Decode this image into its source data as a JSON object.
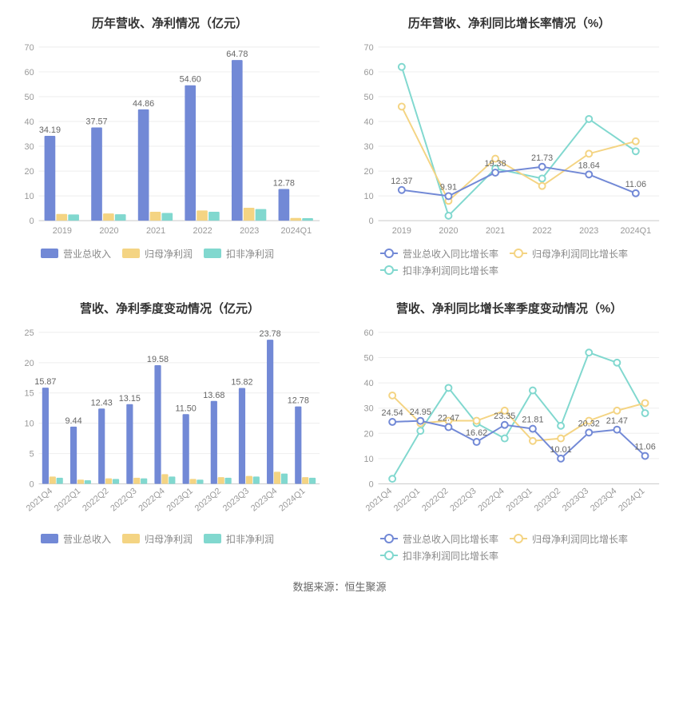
{
  "colors": {
    "series_blue": "#7289d6",
    "series_yellow": "#f4d483",
    "series_teal": "#81d8cf",
    "axis_text": "#999999",
    "grid": "#eeeeee",
    "axis_line": "#cccccc",
    "label_text": "#666666",
    "title_text": "#333333",
    "bg": "#ffffff"
  },
  "chart_tl": {
    "title": "历年营收、净利情况（亿元）",
    "type": "bar",
    "categories": [
      "2019",
      "2020",
      "2021",
      "2022",
      "2023",
      "2024Q1"
    ],
    "ylim": [
      0,
      70
    ],
    "ytick_step": 10,
    "series": [
      {
        "name": "营业总收入",
        "color": "#7289d6",
        "values": [
          34.19,
          37.57,
          44.86,
          54.6,
          64.78,
          12.78
        ],
        "labels": [
          "34.19",
          "37.57",
          "44.86",
          "54.60",
          "64.78",
          "12.78"
        ]
      },
      {
        "name": "归母净利润",
        "color": "#f4d483",
        "values": [
          2.7,
          2.9,
          3.6,
          4.1,
          5.2,
          1.1
        ]
      },
      {
        "name": "扣非净利润",
        "color": "#81d8cf",
        "values": [
          2.5,
          2.6,
          3.1,
          3.6,
          4.7,
          1.0
        ]
      }
    ],
    "legend": [
      "营业总收入",
      "归母净利润",
      "扣非净利润"
    ]
  },
  "chart_tr": {
    "title": "历年营收、净利同比增长率情况（%）",
    "type": "line",
    "categories": [
      "2019",
      "2020",
      "2021",
      "2022",
      "2023",
      "2024Q1"
    ],
    "ylim": [
      0,
      70
    ],
    "ytick_step": 10,
    "series": [
      {
        "name": "营业总收入同比增长率",
        "color": "#7289d6",
        "values": [
          12.37,
          9.91,
          19.38,
          21.73,
          18.64,
          11.06
        ],
        "labels": [
          "12.37",
          "9.91",
          "19.38",
          "21.73",
          "18.64",
          "11.06"
        ]
      },
      {
        "name": "归母净利润同比增长率",
        "color": "#f4d483",
        "values": [
          46,
          8,
          25,
          14,
          27,
          32
        ]
      },
      {
        "name": "扣非净利润同比增长率",
        "color": "#81d8cf",
        "values": [
          62,
          2,
          21,
          17,
          41,
          28
        ]
      }
    ],
    "legend": [
      "营业总收入同比增长率",
      "归母净利润同比增长率",
      "扣非净利润同比增长率"
    ]
  },
  "chart_bl": {
    "title": "营收、净利季度变动情况（亿元）",
    "type": "bar",
    "categories": [
      "2021Q4",
      "2022Q1",
      "2022Q2",
      "2022Q3",
      "2022Q4",
      "2023Q1",
      "2023Q2",
      "2023Q3",
      "2023Q4",
      "2024Q1"
    ],
    "ylim": [
      0,
      25
    ],
    "ytick_step": 5,
    "rotate_x": true,
    "series": [
      {
        "name": "营业总收入",
        "color": "#7289d6",
        "values": [
          15.87,
          9.44,
          12.43,
          13.15,
          19.58,
          11.5,
          13.68,
          15.82,
          23.78,
          12.78
        ],
        "labels": [
          "15.87",
          "9.44",
          "12.43",
          "13.15",
          "19.58",
          "11.50",
          "13.68",
          "15.82",
          "23.78",
          "12.78"
        ]
      },
      {
        "name": "归母净利润",
        "color": "#f4d483",
        "values": [
          1.2,
          0.7,
          0.9,
          1.0,
          1.6,
          0.8,
          1.1,
          1.3,
          2.0,
          1.1
        ]
      },
      {
        "name": "扣非净利润",
        "color": "#81d8cf",
        "values": [
          1.0,
          0.6,
          0.8,
          0.9,
          1.2,
          0.7,
          1.0,
          1.2,
          1.7,
          1.0
        ]
      }
    ],
    "legend": [
      "营业总收入",
      "归母净利润",
      "扣非净利润"
    ]
  },
  "chart_br": {
    "title": "营收、净利同比增长率季度变动情况（%）",
    "type": "line",
    "categories": [
      "2021Q4",
      "2022Q1",
      "2022Q2",
      "2022Q3",
      "2022Q4",
      "2023Q1",
      "2023Q2",
      "2023Q3",
      "2023Q4",
      "2024Q1"
    ],
    "ylim": [
      0,
      60
    ],
    "ytick_step": 10,
    "rotate_x": true,
    "series": [
      {
        "name": "营业总收入同比增长率",
        "color": "#7289d6",
        "values": [
          24.54,
          24.95,
          22.47,
          16.62,
          23.35,
          21.81,
          10.01,
          20.32,
          21.47,
          11.06
        ],
        "labels": [
          "24.54",
          "24.95",
          "22.47",
          "16.62",
          "23.35",
          "21.81",
          "10.01",
          "20.32",
          "21.47",
          "11.06"
        ]
      },
      {
        "name": "归母净利润同比增长率",
        "color": "#f4d483",
        "values": [
          35,
          24,
          25,
          25,
          29,
          17,
          18,
          25,
          29,
          32
        ]
      },
      {
        "name": "扣非净利润同比增长率",
        "color": "#81d8cf",
        "values": [
          2,
          21,
          38,
          24,
          18,
          37,
          23,
          52,
          48,
          28
        ]
      }
    ],
    "legend": [
      "营业总收入同比增长率",
      "归母净利润同比增长率",
      "扣非净利润同比增长率"
    ]
  },
  "footer": "数据来源：恒生聚源"
}
